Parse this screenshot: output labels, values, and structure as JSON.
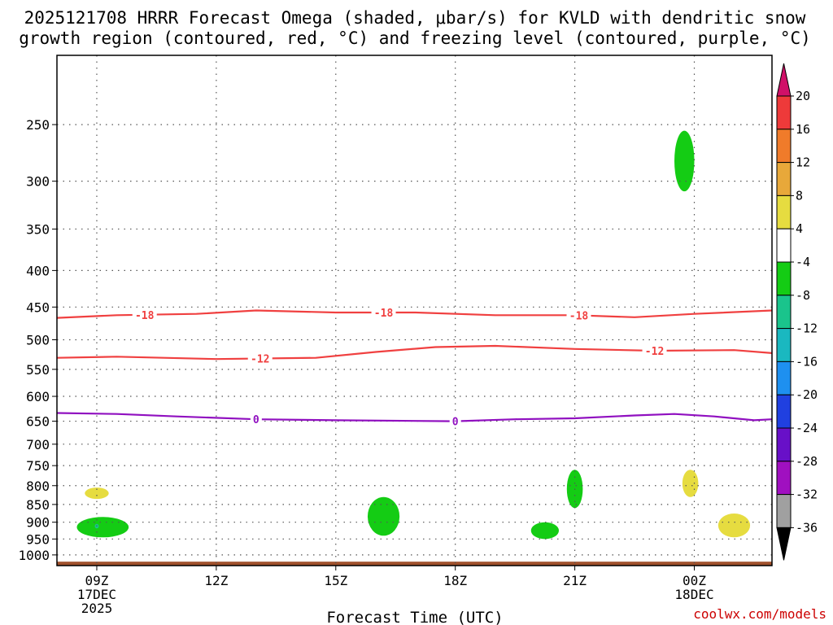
{
  "chart_data": {
    "type": "time-height",
    "title_line1": "2025121708 HRRR Forecast Omega (shaded, μbar/s) for KVLD with dendritic snow",
    "title_line2": "growth region (contoured, red, °C) and freezing level (contoured, purple, °C)",
    "xlabel": "Forecast Time (UTC)",
    "credit": "coolwx.com/models",
    "x_range_hours": [
      8.0,
      25.95
    ],
    "y_range_mb": [
      1035,
      200
    ],
    "y_ticks": [
      {
        "value": 250,
        "label": "250"
      },
      {
        "value": 300,
        "label": "300"
      },
      {
        "value": 350,
        "label": "350"
      },
      {
        "value": 400,
        "label": "400"
      },
      {
        "value": 450,
        "label": "450"
      },
      {
        "value": 500,
        "label": "500"
      },
      {
        "value": 550,
        "label": "550"
      },
      {
        "value": 600,
        "label": "600"
      },
      {
        "value": 650,
        "label": "650"
      },
      {
        "value": 700,
        "label": "700"
      },
      {
        "value": 750,
        "label": "750"
      },
      {
        "value": 800,
        "label": "800"
      },
      {
        "value": 850,
        "label": "850"
      },
      {
        "value": 900,
        "label": "900"
      },
      {
        "value": 950,
        "label": "950"
      },
      {
        "value": 1000,
        "label": "1000"
      }
    ],
    "x_ticks": [
      {
        "hour": 9,
        "lines": [
          "09Z",
          "17DEC",
          "2025"
        ]
      },
      {
        "hour": 12,
        "lines": [
          "12Z"
        ]
      },
      {
        "hour": 15,
        "lines": [
          "15Z"
        ]
      },
      {
        "hour": 18,
        "lines": [
          "18Z"
        ]
      },
      {
        "hour": 21,
        "lines": [
          "21Z"
        ]
      },
      {
        "hour": 24,
        "lines": [
          "00Z",
          "18DEC"
        ]
      }
    ],
    "ground_level_mb": 1022,
    "colorbar": {
      "levels": [
        "20",
        "16",
        "12",
        "8",
        "4",
        "-4",
        "-8",
        "-12",
        "-16",
        "-20",
        "-24",
        "-28",
        "-32",
        "-36"
      ],
      "colors": [
        "#d01068",
        "#ee3a3a",
        "#f07b2a",
        "#e8a83a",
        "#e6dc40",
        "#ffffff",
        "#14cc14",
        "#1ac48c",
        "#1ab8c0",
        "#1e90f0",
        "#2040e0",
        "#6810c8",
        "#a010c0",
        "#a0a0a0",
        "#000000"
      ]
    },
    "contours": [
      {
        "name": "dgz -18",
        "color": "#f04040",
        "points": [
          [
            8.0,
            466
          ],
          [
            9.5,
            462
          ],
          [
            11.5,
            460
          ],
          [
            13,
            455
          ],
          [
            15,
            458
          ],
          [
            17,
            458
          ],
          [
            19,
            462
          ],
          [
            21,
            462
          ],
          [
            22.5,
            465
          ],
          [
            24,
            460
          ],
          [
            25.95,
            455
          ]
        ],
        "labels": [
          {
            "hour": 10.2,
            "text": "-18"
          },
          {
            "hour": 16.2,
            "text": "-18"
          },
          {
            "hour": 21.1,
            "text": "-18"
          }
        ]
      },
      {
        "name": "dgz -12",
        "color": "#f04040",
        "points": [
          [
            8.0,
            530
          ],
          [
            9.5,
            528
          ],
          [
            12,
            532
          ],
          [
            14.5,
            530
          ],
          [
            16,
            520
          ],
          [
            17.5,
            512
          ],
          [
            19,
            510
          ],
          [
            21,
            515
          ],
          [
            23,
            518
          ],
          [
            25,
            517
          ],
          [
            25.95,
            522
          ]
        ],
        "labels": [
          {
            "hour": 13.1,
            "text": "-12"
          },
          {
            "hour": 23.0,
            "text": "-12"
          }
        ]
      },
      {
        "name": "freezing level 0",
        "color": "#9010c0",
        "points": [
          [
            8.0,
            633
          ],
          [
            9.5,
            635
          ],
          [
            11,
            640
          ],
          [
            13,
            646
          ],
          [
            15,
            648
          ],
          [
            18,
            650
          ],
          [
            19.5,
            646
          ],
          [
            21,
            644
          ],
          [
            22.5,
            638
          ],
          [
            23.5,
            635
          ],
          [
            24.5,
            640
          ],
          [
            25.5,
            648
          ],
          [
            25.95,
            646
          ]
        ],
        "labels": [
          {
            "hour": 13.0,
            "text": "0"
          },
          {
            "hour": 18.0,
            "text": "0"
          }
        ]
      }
    ],
    "omega_regions": [
      {
        "value_band": "-8 to -4",
        "color": "#14cc14",
        "hour_range": [
          23.5,
          24.0
        ],
        "mb_range": [
          255,
          310
        ]
      },
      {
        "value_band": "4 to 8",
        "color": "#e6dc40",
        "hour_range": [
          8.7,
          9.3
        ],
        "mb_range": [
          805,
          835
        ]
      },
      {
        "value_band": "-8 to -4",
        "color": "#14cc14",
        "hour_range": [
          8.5,
          9.8
        ],
        "mb_range": [
          885,
          945
        ]
      },
      {
        "value_band": "-12 to -8",
        "color": "#1ac48c",
        "hour_range": [
          8.95,
          9.05
        ],
        "mb_range": [
          905,
          918
        ]
      },
      {
        "value_band": "-8 to -4",
        "color": "#14cc14",
        "hour_range": [
          15.8,
          16.6
        ],
        "mb_range": [
          830,
          940
        ]
      },
      {
        "value_band": "-8 to -4",
        "color": "#14cc14",
        "hour_range": [
          19.9,
          20.6
        ],
        "mb_range": [
          900,
          950
        ]
      },
      {
        "value_band": "-8 to -4",
        "color": "#14cc14",
        "hour_range": [
          20.8,
          21.2
        ],
        "mb_range": [
          760,
          860
        ]
      },
      {
        "value_band": "4 to 8",
        "color": "#e6dc40",
        "hour_range": [
          23.7,
          24.1
        ],
        "mb_range": [
          760,
          830
        ]
      },
      {
        "value_band": "4 to 8",
        "color": "#e6dc40",
        "hour_range": [
          24.6,
          25.4
        ],
        "mb_range": [
          875,
          945
        ]
      }
    ]
  }
}
